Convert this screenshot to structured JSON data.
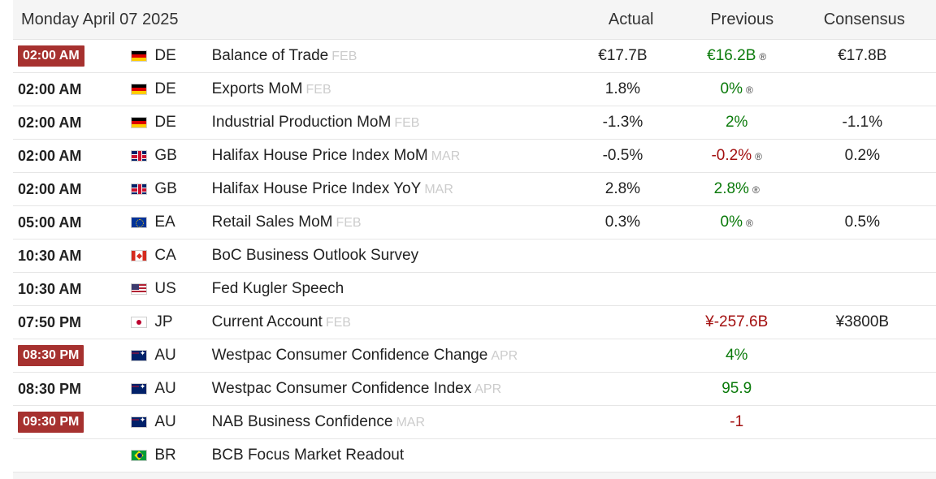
{
  "header": {
    "date": "Monday April 07 2025",
    "actual": "Actual",
    "previous": "Previous",
    "consensus": "Consensus"
  },
  "rows": [
    {
      "time": "02:00 AM",
      "badge": true,
      "country": "DE",
      "flag": "de",
      "event": "Balance of Trade",
      "ref": "FEB",
      "actual": "€17.7B",
      "previous": "€16.2B",
      "prev_color": "green",
      "revised": "®",
      "consensus": "€17.8B"
    },
    {
      "time": "02:00 AM",
      "badge": false,
      "country": "DE",
      "flag": "de",
      "event": "Exports MoM",
      "ref": "FEB",
      "actual": "1.8%",
      "previous": "0%",
      "prev_color": "green",
      "revised": "®",
      "consensus": ""
    },
    {
      "time": "02:00 AM",
      "badge": false,
      "country": "DE",
      "flag": "de",
      "event": "Industrial Production MoM",
      "ref": "FEB",
      "actual": "-1.3%",
      "previous": "2%",
      "prev_color": "green",
      "revised": "",
      "consensus": "-1.1%"
    },
    {
      "time": "02:00 AM",
      "badge": false,
      "country": "GB",
      "flag": "gb",
      "event": "Halifax House Price Index MoM",
      "ref": "MAR",
      "actual": "-0.5%",
      "previous": "-0.2%",
      "prev_color": "red",
      "revised": "®",
      "consensus": "0.2%"
    },
    {
      "time": "02:00 AM",
      "badge": false,
      "country": "GB",
      "flag": "gb",
      "event": "Halifax House Price Index YoY",
      "ref": "MAR",
      "actual": "2.8%",
      "previous": "2.8%",
      "prev_color": "green",
      "revised": "®",
      "consensus": ""
    },
    {
      "time": "05:00 AM",
      "badge": false,
      "country": "EA",
      "flag": "ea",
      "event": "Retail Sales MoM",
      "ref": "FEB",
      "actual": "0.3%",
      "previous": "0%",
      "prev_color": "green",
      "revised": "®",
      "consensus": "0.5%"
    },
    {
      "time": "10:30 AM",
      "badge": false,
      "country": "CA",
      "flag": "ca",
      "event": "BoC Business Outlook Survey",
      "ref": "",
      "actual": "",
      "previous": "",
      "prev_color": "",
      "revised": "",
      "consensus": ""
    },
    {
      "time": "10:30 AM",
      "badge": false,
      "country": "US",
      "flag": "us",
      "event": "Fed Kugler Speech",
      "ref": "",
      "actual": "",
      "previous": "",
      "prev_color": "",
      "revised": "",
      "consensus": ""
    },
    {
      "time": "07:50 PM",
      "badge": false,
      "country": "JP",
      "flag": "jp",
      "event": "Current Account",
      "ref": "FEB",
      "actual": "",
      "previous": "¥-257.6B",
      "prev_color": "red",
      "revised": "",
      "consensus": "¥3800B"
    },
    {
      "time": "08:30 PM",
      "badge": true,
      "country": "AU",
      "flag": "au",
      "event": "Westpac Consumer Confidence Change",
      "ref": "APR",
      "actual": "",
      "previous": "4%",
      "prev_color": "green",
      "revised": "",
      "consensus": ""
    },
    {
      "time": "08:30 PM",
      "badge": false,
      "country": "AU",
      "flag": "au",
      "event": "Westpac Consumer Confidence Index",
      "ref": "APR",
      "actual": "",
      "previous": "95.9",
      "prev_color": "green",
      "revised": "",
      "consensus": ""
    },
    {
      "time": "09:30 PM",
      "badge": true,
      "country": "AU",
      "flag": "au",
      "event": "NAB Business Confidence",
      "ref": "MAR",
      "actual": "",
      "previous": "-1",
      "prev_color": "red",
      "revised": "",
      "consensus": ""
    },
    {
      "time": "",
      "badge": false,
      "country": "BR",
      "flag": "br",
      "event": "BCB Focus Market Readout",
      "ref": "",
      "actual": "",
      "previous": "",
      "prev_color": "",
      "revised": "",
      "consensus": ""
    }
  ]
}
